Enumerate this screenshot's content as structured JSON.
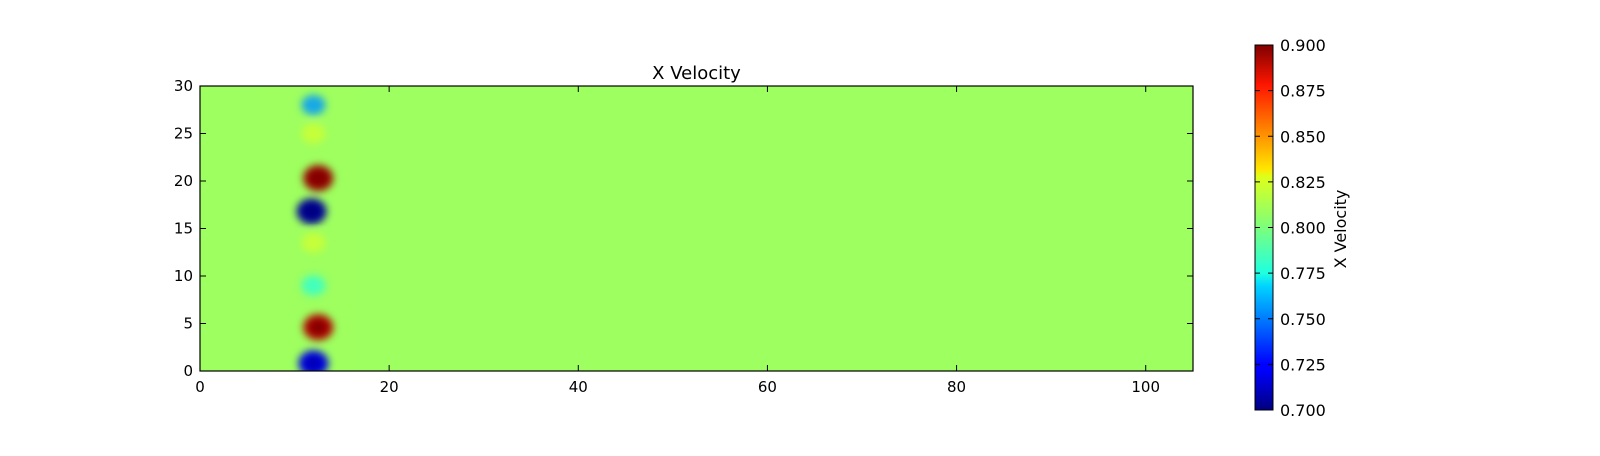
{
  "chart_data": {
    "type": "heatmap",
    "title": "X Velocity",
    "xlabel": "",
    "ylabel": "",
    "xlim": [
      0,
      105
    ],
    "ylim": [
      0,
      30
    ],
    "x_ticks": [
      "0",
      "20",
      "40",
      "60",
      "80",
      "100"
    ],
    "x_tick_values": [
      0,
      20,
      40,
      60,
      80,
      100
    ],
    "y_ticks": [
      "0",
      "5",
      "10",
      "15",
      "20",
      "25",
      "30"
    ],
    "y_tick_values": [
      0,
      5,
      10,
      15,
      20,
      25,
      30
    ],
    "colorbar": {
      "label": "X Velocity",
      "range": [
        0.7,
        0.9
      ],
      "ticks": [
        "0.700",
        "0.725",
        "0.750",
        "0.775",
        "0.800",
        "0.825",
        "0.850",
        "0.875",
        "0.900"
      ],
      "tick_values": [
        0.7,
        0.725,
        0.75,
        0.775,
        0.8,
        0.825,
        0.85,
        0.875,
        0.9
      ],
      "colormap": "jet"
    },
    "background_value": 0.806,
    "features": [
      {
        "x": 12,
        "y": 28,
        "value": 0.755
      },
      {
        "x": 12,
        "y": 25,
        "value": 0.815
      },
      {
        "x": 12.5,
        "y": 20.3,
        "value": 0.895
      },
      {
        "x": 11.8,
        "y": 16.8,
        "value": 0.705
      },
      {
        "x": 12,
        "y": 13.5,
        "value": 0.815
      },
      {
        "x": 12,
        "y": 9,
        "value": 0.785
      },
      {
        "x": 12.5,
        "y": 4.6,
        "value": 0.89
      },
      {
        "x": 12,
        "y": 0.8,
        "value": 0.72
      }
    ]
  }
}
